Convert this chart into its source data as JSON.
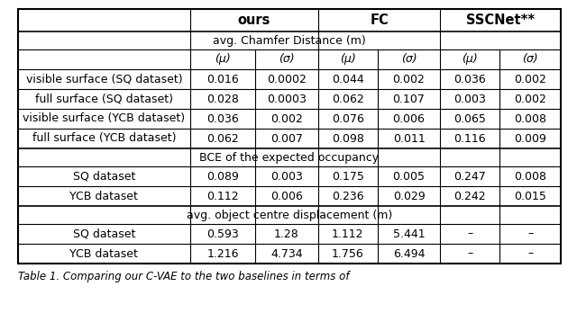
{
  "headers_top": [
    "ours",
    "FC",
    "SSCNet**"
  ],
  "sub_headers": [
    "(μ)",
    "(σ)",
    "(μ)",
    "(σ)",
    "(μ)",
    "(σ)"
  ],
  "section1_title": "avg. Chamfer Distance (m)",
  "section2_title": "BCE of the expected occupancy",
  "section3_title": "avg. object centre displacement (m)",
  "rows1": [
    [
      "visible surface (SQ dataset)",
      "0.016",
      "0.0002",
      "0.044",
      "0.002",
      "0.036",
      "0.002"
    ],
    [
      "full surface (SQ dataset)",
      "0.028",
      "0.0003",
      "0.062",
      "0.107",
      "0.003",
      "0.002"
    ],
    [
      "visible surface (YCB dataset)",
      "0.036",
      "0.002",
      "0.076",
      "0.006",
      "0.065",
      "0.008"
    ],
    [
      "full surface (YCB dataset)",
      "0.062",
      "0.007",
      "0.098",
      "0.011",
      "0.116",
      "0.009"
    ]
  ],
  "rows2": [
    [
      "SQ dataset",
      "0.089",
      "0.003",
      "0.175",
      "0.005",
      "0.247",
      "0.008"
    ],
    [
      "YCB dataset",
      "0.112",
      "0.006",
      "0.236",
      "0.029",
      "0.242",
      "0.015"
    ]
  ],
  "rows3": [
    [
      "SQ dataset",
      "0.593",
      "1.28",
      "1.112",
      "5.441",
      "–",
      "–"
    ],
    [
      "YCB dataset",
      "1.216",
      "4.734",
      "1.756",
      "6.494",
      "–",
      "–"
    ]
  ],
  "caption": "Table 1. Comparing our C-VAE to the two baselines in terms of",
  "bg_color": "#ffffff",
  "text_color": "#000000",
  "font_size": 9.0,
  "header_font_size": 10.5
}
